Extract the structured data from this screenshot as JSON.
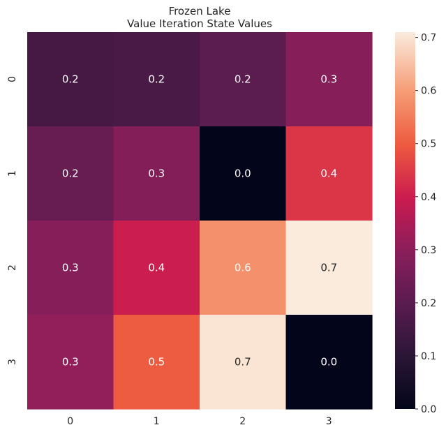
{
  "chart_data": {
    "type": "heatmap",
    "title": "Frozen Lake",
    "subtitle": "Value Iteration State Values",
    "x_tick_labels": [
      "0",
      "1",
      "2",
      "3"
    ],
    "y_tick_labels": [
      "0",
      "1",
      "2",
      "3"
    ],
    "values": [
      [
        0.2,
        0.2,
        0.2,
        0.3
      ],
      [
        0.2,
        0.3,
        0.0,
        0.4
      ],
      [
        0.3,
        0.4,
        0.6,
        0.7
      ],
      [
        0.3,
        0.5,
        0.7,
        0.0
      ]
    ],
    "value_labels": [
      [
        "0.2",
        "0.2",
        "0.2",
        "0.3"
      ],
      [
        "0.2",
        "0.3",
        "0.0",
        "0.4"
      ],
      [
        "0.3",
        "0.4",
        "0.6",
        "0.7"
      ],
      [
        "0.3",
        "0.5",
        "0.7",
        "0.0"
      ]
    ],
    "color_true_values": [
      [
        0.155,
        0.163,
        0.2,
        0.29
      ],
      [
        0.225,
        0.283,
        0.0,
        0.44
      ],
      [
        0.29,
        0.4,
        0.58,
        0.71
      ],
      [
        0.31,
        0.5,
        0.7,
        0.0
      ]
    ],
    "colorbar": {
      "min": 0.0,
      "max": 0.71,
      "ticks": [
        0.0,
        0.1,
        0.2,
        0.3,
        0.4,
        0.5,
        0.6,
        0.7
      ],
      "tick_labels": [
        "0.0",
        "0.1",
        "0.2",
        "0.3",
        "0.4",
        "0.5",
        "0.6",
        "0.7"
      ],
      "colormap": "rocket"
    },
    "annotation_colors": {
      "light": "#ffffff",
      "dark": "#262626"
    }
  }
}
